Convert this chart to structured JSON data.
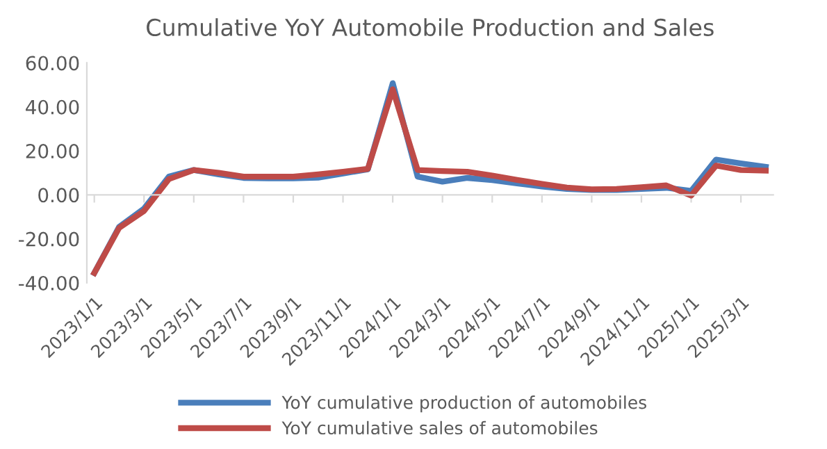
{
  "chart_data": {
    "type": "line",
    "title": "Cumulative YoY Automobile Production and Sales",
    "categories": [
      "2023/1/1",
      null,
      "2023/3/1",
      null,
      "2023/5/1",
      null,
      "2023/7/1",
      null,
      "2023/9/1",
      null,
      "2023/11/1",
      null,
      "2024/1/1",
      null,
      "2024/3/1",
      null,
      "2024/5/1",
      null,
      "2024/7/1",
      null,
      "2024/9/1",
      null,
      "2024/11/1",
      null,
      "2025/1/1",
      null,
      "2025/3/1",
      null
    ],
    "series": [
      {
        "name": "YoY cumulative production of automobiles",
        "color": "#4a7ebb",
        "values": [
          -35.5,
          -14.5,
          -6.2,
          8.3,
          11.3,
          9.3,
          7.7,
          7.5,
          7.5,
          7.8,
          9.7,
          11.6,
          50.8,
          8.3,
          6.0,
          7.7,
          6.7,
          5.2,
          3.8,
          2.7,
          2.2,
          2.2,
          2.7,
          3.2,
          1.8,
          16.0,
          14.3,
          12.7
        ]
      },
      {
        "name": "YoY cumulative sales of automobiles",
        "color": "#be4b48",
        "values": [
          -35.5,
          -15.0,
          -7.3,
          7.2,
          11.3,
          10.0,
          8.3,
          8.3,
          8.3,
          9.3,
          10.5,
          11.8,
          48.0,
          11.3,
          10.8,
          10.5,
          8.8,
          6.8,
          5.0,
          3.3,
          2.5,
          2.7,
          3.5,
          4.3,
          -0.3,
          13.3,
          11.3,
          11.0
        ]
      }
    ],
    "ylim": [
      -40,
      60
    ],
    "yticks": [
      {
        "value": -40,
        "label": "-40.00"
      },
      {
        "value": -20,
        "label": "-20.00"
      },
      {
        "value": 0,
        "label": "0.00"
      },
      {
        "value": 20,
        "label": "20.00"
      },
      {
        "value": 40,
        "label": "40.00"
      },
      {
        "value": 60,
        "label": "60.00"
      }
    ],
    "legend": "bottom",
    "marker": "none",
    "line_style": "solid"
  }
}
